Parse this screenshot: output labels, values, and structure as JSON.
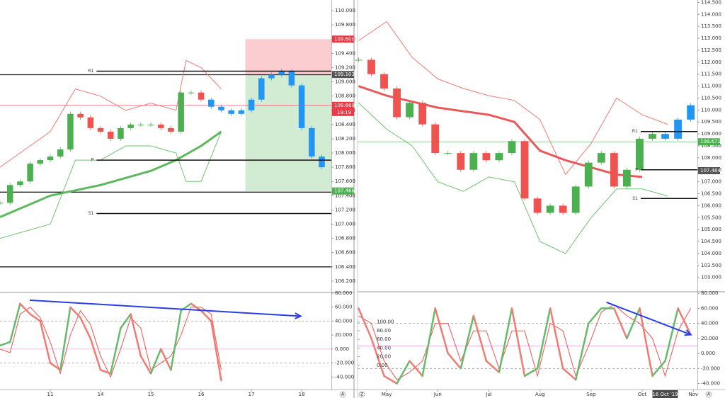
{
  "chart_data": [
    {
      "type": "price",
      "xlim": [
        0,
        6.59
      ],
      "ylim": [
        106.05,
        110.15
      ],
      "xticks": [
        {
          "value": 1,
          "label": "11"
        },
        {
          "value": 2,
          "label": "14"
        },
        {
          "value": 3,
          "label": "15"
        },
        {
          "value": 4,
          "label": "16"
        },
        {
          "value": 5,
          "label": "17"
        },
        {
          "value": 6,
          "label": "18"
        }
      ],
      "yticks": [
        {
          "value": 106.2,
          "label": "106.200"
        },
        {
          "value": 106.4,
          "label": "106.400"
        },
        {
          "value": 106.6,
          "label": "106.600"
        },
        {
          "value": 106.8,
          "label": "106.800"
        },
        {
          "value": 107.0,
          "label": "107.000"
        },
        {
          "value": 107.2,
          "label": "107.200"
        },
        {
          "value": 107.4,
          "label": "107.400"
        },
        {
          "value": 107.6,
          "label": "107.600"
        },
        {
          "value": 107.8,
          "label": "107.800"
        },
        {
          "value": 108.0,
          "label": "108.000"
        },
        {
          "value": 108.2,
          "label": "108.200"
        },
        {
          "value": 108.4,
          "label": "108.400"
        },
        {
          "value": 108.6,
          "label": "108.600"
        },
        {
          "value": 108.8,
          "label": "108.800"
        },
        {
          "value": 109.0,
          "label": "109.000"
        },
        {
          "value": 109.2,
          "label": "109.200"
        },
        {
          "value": 109.4,
          "label": "109.400"
        },
        {
          "value": 109.6,
          "label": "109.600"
        },
        {
          "value": 109.8,
          "label": "109.800"
        },
        {
          "value": 110.0,
          "label": "110.000"
        }
      ],
      "x": [
        0,
        0.2,
        0.4,
        0.6,
        0.8,
        1.0,
        1.2,
        1.4,
        1.6,
        1.8,
        2.0,
        2.2,
        2.4,
        2.6,
        2.8,
        3.0,
        3.2,
        3.4,
        3.6,
        3.8,
        4.0,
        4.2,
        4.4,
        4.6,
        4.8,
        5.0,
        5.2,
        5.4,
        5.6,
        5.8,
        6.0,
        6.2,
        6.4
      ],
      "values": [
        107.3,
        107.55,
        107.6,
        107.85,
        107.9,
        107.95,
        108.05,
        108.55,
        108.5,
        108.35,
        108.3,
        108.2,
        108.35,
        108.4,
        108.4,
        108.4,
        108.35,
        108.3,
        108.85,
        108.85,
        108.75,
        108.65,
        108.6,
        108.55,
        108.6,
        108.75,
        109.05,
        109.1,
        109.15,
        108.95,
        108.35,
        107.95,
        107.8
      ],
      "up_color": "#4caf50",
      "down_color": "#ef5350",
      "highlight_color": "#2196f3",
      "highlight_from": 4.2,
      "series": [
        {
          "color": "#ef7b73",
          "width": 1,
          "x": [
            0,
            1,
            1.5,
            2,
            2.5,
            3,
            3.5,
            3.7,
            4.0,
            4.4
          ],
          "values": [
            107.8,
            108.3,
            108.9,
            108.8,
            108.6,
            108.7,
            108.6,
            109.3,
            109.2,
            108.9
          ]
        },
        {
          "color": "#6fc36f",
          "width": 1,
          "x": [
            0,
            1,
            1.5,
            2,
            2.5,
            3,
            3.5,
            3.7,
            4.0,
            4.4
          ],
          "values": [
            106.8,
            107.0,
            107.9,
            107.9,
            108.1,
            108.1,
            108.0,
            107.6,
            107.6,
            108.3
          ]
        },
        {
          "color": "#5cb85c",
          "width": 3,
          "x": [
            0,
            1,
            2,
            3,
            3.5,
            4.0,
            4.4
          ],
          "values": [
            107.1,
            107.4,
            107.55,
            107.75,
            107.9,
            108.1,
            108.3
          ]
        }
      ],
      "hlines": [
        109.1,
        107.45,
        106.4
      ],
      "levels": [
        {
          "label": "R1",
          "value": 109.15
        },
        {
          "label": "P",
          "value": 107.9
        },
        {
          "label": "S1",
          "value": 107.15
        }
      ],
      "levels_from": 1.92,
      "position": {
        "x": [
          4.88,
          6.59
        ],
        "stop": 109.6,
        "entry": 109.103,
        "target": 107.466
      },
      "price_labels": [
        {
          "value": 109.6,
          "label": "109.600",
          "color": "#f23645"
        },
        {
          "value": 109.103,
          "label": "109.103",
          "color": "#555555"
        },
        {
          "value": 108.669,
          "label": "108.669",
          "color": "#f23645",
          "countdown": "19:19",
          "line": true
        },
        {
          "value": 107.466,
          "label": "107.466",
          "color": "#4caf50"
        }
      ]
    },
    {
      "type": "oscillator",
      "xlim": [
        0,
        6.59
      ],
      "ylim": [
        -58,
        80
      ],
      "yticks": [
        {
          "value": 80,
          "label": "80.000"
        },
        {
          "value": 60,
          "label": "60.000"
        },
        {
          "value": 40,
          "label": "40.000"
        },
        {
          "value": 20,
          "label": "20.000"
        },
        {
          "value": 0,
          "label": "0.000"
        },
        {
          "value": -20,
          "label": "-20.000"
        },
        {
          "value": -40,
          "label": "-40.000"
        }
      ],
      "levels": [
        40,
        -20
      ],
      "midline": 0,
      "series": [
        {
          "color": "#ef5350",
          "width": 1,
          "x": [
            0,
            0.2,
            0.4,
            0.6,
            0.8,
            1.0,
            1.2,
            1.4,
            1.6,
            1.8,
            2.0,
            2.2,
            2.4,
            2.6,
            2.8,
            3.0,
            3.2,
            3.4,
            3.6,
            3.8,
            4.0,
            4.2,
            4.4
          ],
          "values": [
            0,
            -5,
            50,
            60,
            45,
            10,
            -35,
            20,
            55,
            35,
            -10,
            -40,
            0,
            45,
            30,
            -30,
            -20,
            -10,
            20,
            60,
            60,
            50,
            -30
          ]
        },
        {
          "color": "#66bb6a",
          "down_color": "#f07b72",
          "width": 2.5,
          "x": [
            0,
            0.2,
            0.4,
            0.6,
            0.8,
            1.0,
            1.2,
            1.4,
            1.6,
            1.8,
            2.0,
            2.2,
            2.4,
            2.6,
            2.8,
            3.0,
            3.2,
            3.4,
            3.6,
            3.8,
            4.0,
            4.2,
            4.4
          ],
          "values": [
            5,
            10,
            65,
            50,
            40,
            -20,
            -30,
            60,
            45,
            15,
            -30,
            -35,
            30,
            50,
            -10,
            -35,
            0,
            -30,
            55,
            65,
            55,
            40,
            -45
          ]
        }
      ],
      "trend": {
        "color": "#2b3ee6",
        "x": [
          0.59,
          5.98
        ],
        "values": [
          70,
          47
        ]
      },
      "buttons": [
        "A"
      ]
    },
    {
      "type": "price",
      "xlim": [
        4.43,
        11.08
      ],
      "ylim": [
        102.4,
        114.6
      ],
      "xticks": [
        {
          "value": 5,
          "label": "May"
        },
        {
          "value": 6,
          "label": "Jun"
        },
        {
          "value": 7,
          "label": "Jul"
        },
        {
          "value": 8,
          "label": "Aug"
        },
        {
          "value": 9,
          "label": "Sep"
        },
        {
          "value": 10,
          "label": "Oct"
        },
        {
          "value": 11,
          "label": "Nov"
        }
      ],
      "x_marker": {
        "value": 10.45,
        "label": "16 Oct '19"
      },
      "yticks": [
        {
          "value": 103.0,
          "label": "103.000"
        },
        {
          "value": 103.5,
          "label": "103.500"
        },
        {
          "value": 104.0,
          "label": "104.000"
        },
        {
          "value": 104.5,
          "label": "104.500"
        },
        {
          "value": 105.0,
          "label": "105.000"
        },
        {
          "value": 105.5,
          "label": "105.500"
        },
        {
          "value": 106.0,
          "label": "106.000"
        },
        {
          "value": 106.5,
          "label": "106.500"
        },
        {
          "value": 107.0,
          "label": "107.000"
        },
        {
          "value": 107.5,
          "label": "107.500"
        },
        {
          "value": 108.0,
          "label": "108.000"
        },
        {
          "value": 108.5,
          "label": "108.500"
        },
        {
          "value": 109.0,
          "label": "109.000"
        },
        {
          "value": 109.5,
          "label": "109.500"
        },
        {
          "value": 110.0,
          "label": "110.000"
        },
        {
          "value": 110.5,
          "label": "110.500"
        },
        {
          "value": 111.0,
          "label": "111.000"
        },
        {
          "value": 111.5,
          "label": "111.500"
        },
        {
          "value": 112.0,
          "label": "112.000"
        },
        {
          "value": 112.5,
          "label": "112.500"
        },
        {
          "value": 113.0,
          "label": "113.000"
        },
        {
          "value": 113.5,
          "label": "113.500"
        },
        {
          "value": 114.0,
          "label": "114.000"
        },
        {
          "value": 114.5,
          "label": "114.500"
        }
      ],
      "x": [
        4.45,
        4.7,
        4.95,
        5.2,
        5.45,
        5.7,
        5.95,
        6.2,
        6.45,
        6.7,
        6.95,
        7.2,
        7.45,
        7.7,
        7.95,
        8.2,
        8.45,
        8.7,
        8.95,
        9.2,
        9.45,
        9.7,
        9.95,
        10.2,
        10.45,
        10.7,
        10.95
      ],
      "values": [
        112.1,
        111.5,
        110.9,
        109.7,
        110.3,
        109.4,
        108.2,
        108.2,
        107.5,
        108.2,
        107.9,
        108.2,
        108.7,
        106.3,
        105.7,
        106.0,
        105.7,
        106.8,
        107.8,
        108.2,
        106.8,
        107.5,
        108.8,
        109.0,
        108.8,
        109.6,
        110.2
      ],
      "up_color": "#4caf50",
      "down_color": "#ef5350",
      "highlight_color": "#2196f3",
      "highlight_from": 10.3,
      "series": [
        {
          "color": "#ef7b73",
          "width": 1,
          "x": [
            4.45,
            5.0,
            5.5,
            6.0,
            6.5,
            7.0,
            7.5,
            8.0,
            8.5,
            9.0,
            9.5,
            10.0,
            10.5
          ],
          "values": [
            112.9,
            113.7,
            112.2,
            111.3,
            110.9,
            110.6,
            110.4,
            109.6,
            107.3,
            108.6,
            110.5,
            109.8,
            109.4
          ]
        },
        {
          "color": "#6fc36f",
          "width": 1,
          "x": [
            4.45,
            5.0,
            5.5,
            6.0,
            6.5,
            7.0,
            7.5,
            8.0,
            8.5,
            9.0,
            9.5,
            10.0,
            10.5
          ],
          "values": [
            110.3,
            109.2,
            108.5,
            107.0,
            106.6,
            107.2,
            107.0,
            104.5,
            104.0,
            105.5,
            106.7,
            106.7,
            106.4
          ]
        },
        {
          "color": "#e95a5a",
          "width": 3,
          "x": [
            4.45,
            5.0,
            6.0,
            7.0,
            7.5,
            8.0,
            8.5,
            9.0,
            9.5,
            10.0
          ],
          "values": [
            111.0,
            110.6,
            110.1,
            109.8,
            109.5,
            108.3,
            107.9,
            107.6,
            107.3,
            107.2
          ]
        }
      ],
      "hlines": [],
      "levels": [
        {
          "label": "R1",
          "value": 109.1
        },
        {
          "label": "P",
          "value": 107.5
        },
        {
          "label": "S1",
          "value": 106.3
        }
      ],
      "levels_from": 9.97,
      "price_labels": [
        {
          "value": 108.671,
          "label": "108.671",
          "color": "#4caf50",
          "line": true
        },
        {
          "value": 107.464,
          "label": "107.464",
          "color": "#555555"
        }
      ]
    },
    {
      "type": "oscillator",
      "xlim": [
        4.43,
        11.08
      ],
      "ylim": [
        -48,
        82
      ],
      "y2lim": [
        -56,
        170
      ],
      "yticks": [
        {
          "value": 80,
          "label": "80.000"
        },
        {
          "value": 60,
          "label": "60.000"
        },
        {
          "value": 40,
          "label": "40.000"
        },
        {
          "value": 20,
          "label": "20.000"
        },
        {
          "value": 0,
          "label": "0.000"
        },
        {
          "value": -20,
          "label": "-20.000"
        },
        {
          "value": -40,
          "label": "-40.000"
        }
      ],
      "y2ticks": [
        {
          "value": 100,
          "label": "100.00"
        },
        {
          "value": 80,
          "label": "80.00"
        },
        {
          "value": 60,
          "label": "60.00"
        },
        {
          "value": 40,
          "label": "40.00"
        },
        {
          "value": 20,
          "label": "20.00"
        },
        {
          "value": 0,
          "label": "0.00"
        }
      ],
      "levels": [
        40,
        -20
      ],
      "midline": 10,
      "series": [
        {
          "color": "#ef5350",
          "width": 1,
          "x": [
            4.45,
            4.7,
            4.95,
            5.2,
            5.45,
            5.7,
            5.95,
            6.2,
            6.45,
            6.7,
            6.95,
            7.2,
            7.45,
            7.7,
            7.95,
            8.2,
            8.45,
            8.7,
            8.95,
            9.2,
            9.45,
            9.7,
            9.95,
            10.2,
            10.45,
            10.7,
            10.95
          ],
          "values": [
            50,
            40,
            -10,
            -35,
            -25,
            -10,
            40,
            40,
            -10,
            30,
            30,
            -20,
            30,
            30,
            -30,
            40,
            30,
            -30,
            10,
            55,
            65,
            50,
            40,
            20,
            -30,
            30,
            60
          ]
        },
        {
          "color": "#66bb6a",
          "down_color": "#f07b72",
          "width": 2.5,
          "x": [
            4.45,
            4.7,
            4.95,
            5.2,
            5.45,
            5.7,
            5.95,
            6.2,
            6.45,
            6.7,
            6.95,
            7.2,
            7.45,
            7.7,
            7.95,
            8.2,
            8.45,
            8.7,
            8.95,
            9.2,
            9.45,
            9.7,
            9.95,
            10.2,
            10.45,
            10.7,
            10.95
          ],
          "values": [
            60,
            20,
            -30,
            -40,
            -10,
            -30,
            60,
            0,
            -20,
            50,
            -10,
            -25,
            60,
            -30,
            -20,
            60,
            -20,
            -35,
            40,
            60,
            60,
            20,
            60,
            -30,
            -10,
            60,
            25
          ]
        }
      ],
      "trend": {
        "color": "#2b3ee6",
        "x": [
          9.3,
          10.95
        ],
        "values": [
          68,
          25
        ]
      },
      "buttons": [
        "Z",
        "A"
      ]
    }
  ]
}
